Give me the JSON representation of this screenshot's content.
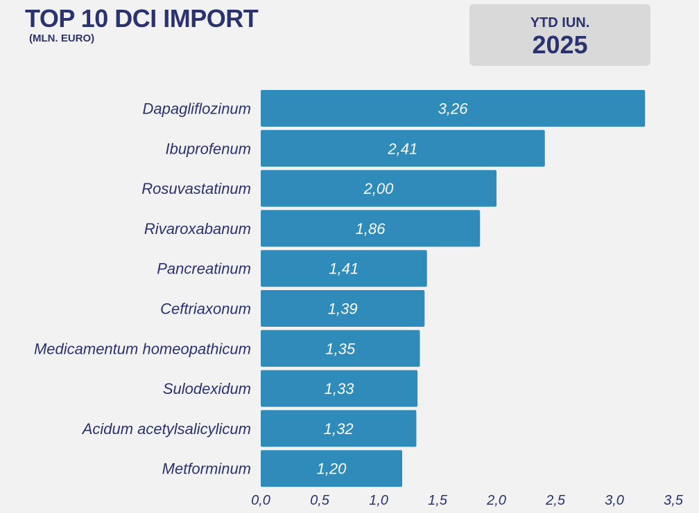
{
  "header": {
    "title": "TOP 10 DCI IMPORT",
    "subtitle": "(MLN. EURO)"
  },
  "period": {
    "label": "YTD IUN.",
    "year": "2025"
  },
  "colors": {
    "bar": "#2e8bba",
    "text": "#2b3270",
    "background": "#f2f2f2",
    "value_label": "#ffffff"
  },
  "chart_data": {
    "type": "bar",
    "orientation": "horizontal",
    "categories": [
      "Dapagliflozinum",
      "Ibuprofenum",
      "Rosuvastatinum",
      "Rivaroxabanum",
      "Pancreatinum",
      "Ceftriaxonum",
      "Medicamentum homeopathicum",
      "Sulodexidum",
      "Acidum acetylsalicylicum",
      "Metforminum"
    ],
    "values": [
      3.26,
      2.41,
      2.0,
      1.86,
      1.41,
      1.39,
      1.35,
      1.33,
      1.32,
      1.2
    ],
    "value_labels": [
      "3,26",
      "2,41",
      "2,00",
      "1,86",
      "1,41",
      "1,39",
      "1,35",
      "1,33",
      "1,32",
      "1,20"
    ],
    "xlim": [
      0,
      3.5
    ],
    "x_ticks": [
      0,
      0.5,
      1.0,
      1.5,
      2.0,
      2.5,
      3.0,
      3.5
    ],
    "x_tick_labels": [
      "0,0",
      "0,5",
      "1,0",
      "1,5",
      "2,0",
      "2,5",
      "3,0",
      "3,5"
    ],
    "grid": false,
    "legend": "none"
  }
}
